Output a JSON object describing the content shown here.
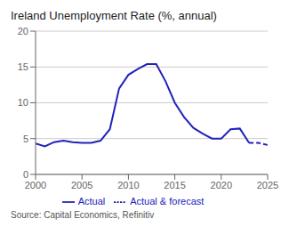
{
  "chart_data": {
    "type": "line",
    "title": "Ireland Unemployment Rate (%, annual)",
    "annotations": [
      "Source: Capital Economics, Refinitiv"
    ],
    "xlim": [
      2000,
      2025
    ],
    "xticks": [
      2000,
      2005,
      2010,
      2015,
      2020,
      2025
    ],
    "ylim": [
      0,
      20
    ],
    "yticks": [
      0,
      5,
      10,
      15,
      20
    ],
    "grid": true,
    "legend": "bottom",
    "series": [
      {
        "name": "Actual",
        "color": "#2222bb",
        "line_style": "solid",
        "x": [
          2000,
          2001,
          2002,
          2003,
          2004,
          2005,
          2006,
          2007,
          2008,
          2009,
          2010,
          2011,
          2012,
          2013,
          2014,
          2015,
          2016,
          2017,
          2018,
          2019,
          2020,
          2021,
          2022,
          2023
        ],
        "values": [
          4.3,
          3.9,
          4.5,
          4.7,
          4.5,
          4.4,
          4.4,
          4.7,
          6.3,
          12.0,
          13.9,
          14.7,
          15.4,
          15.4,
          13.0,
          10.0,
          8.0,
          6.5,
          5.7,
          5.0,
          5.0,
          6.3,
          6.4,
          4.4
        ]
      },
      {
        "name": "Actual & forecast",
        "color": "#2222bb",
        "line_style": "dashed",
        "x": [
          2023,
          2024,
          2025
        ],
        "values": [
          4.4,
          4.4,
          4.1
        ]
      }
    ]
  }
}
